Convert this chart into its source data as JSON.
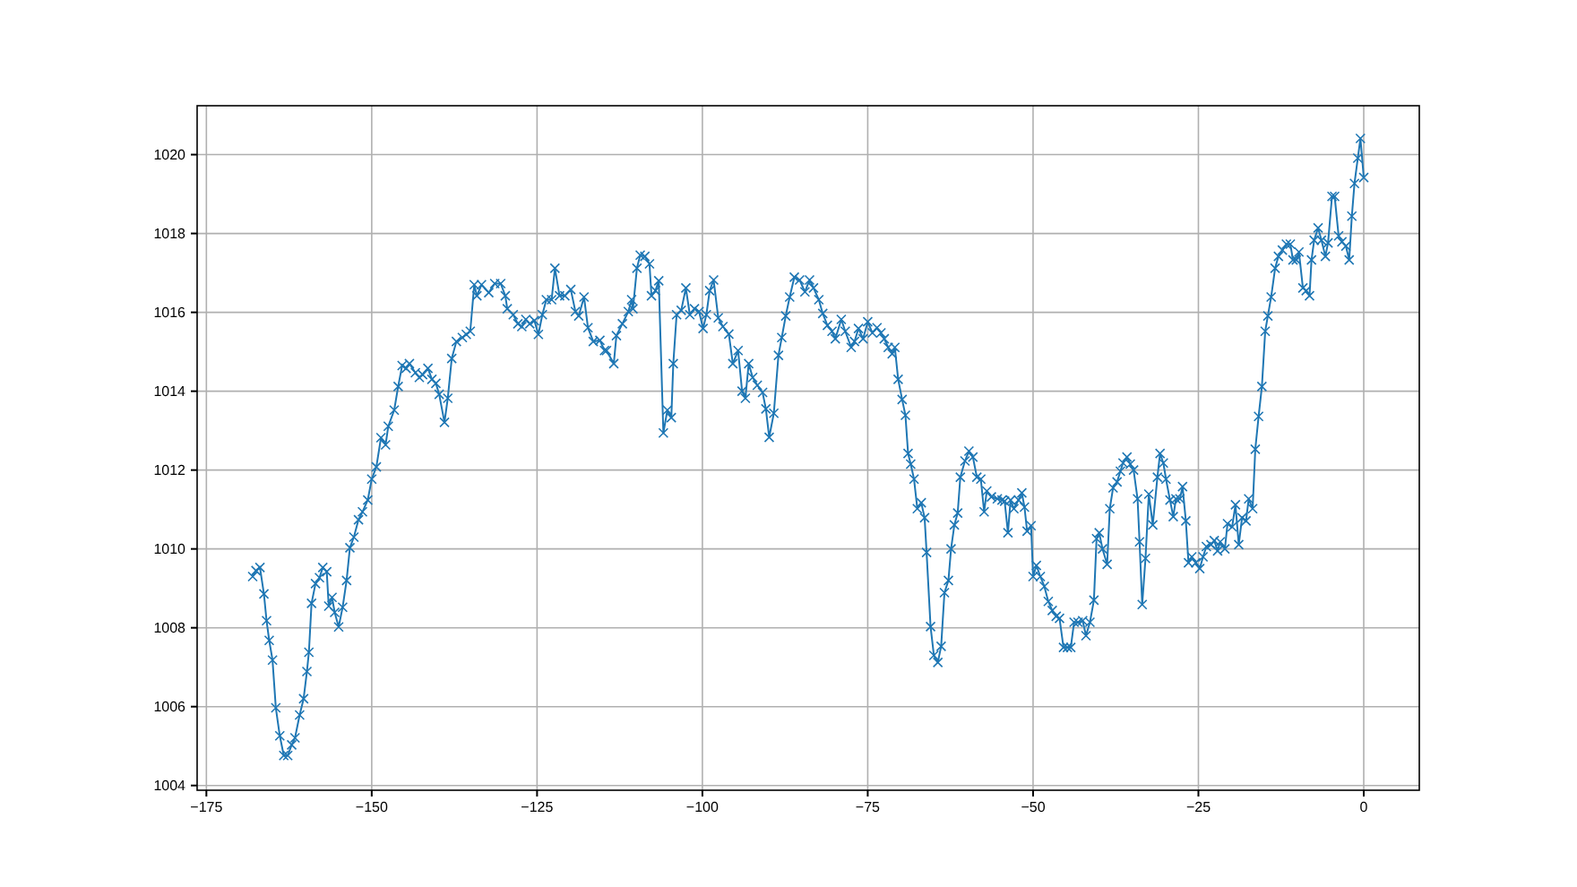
{
  "chart_data": {
    "type": "line",
    "marker": "cross",
    "line_style": "solid",
    "grid": true,
    "xlim": [
      -176.4,
      8.4
    ],
    "ylim": [
      1003.88,
      1021.24
    ],
    "xticks": [
      {
        "value": -175,
        "label": "−175"
      },
      {
        "value": -150,
        "label": "−150"
      },
      {
        "value": -125,
        "label": "−125"
      },
      {
        "value": -100,
        "label": "−100"
      },
      {
        "value": -75,
        "label": "−75"
      },
      {
        "value": -50,
        "label": "−50"
      },
      {
        "value": -25,
        "label": "−25"
      },
      0
    ],
    "yticks": [
      1004,
      1006,
      1008,
      1010,
      1012,
      1014,
      1016,
      1018,
      1020
    ],
    "series": [
      {
        "color": "#1f77b4",
        "x": [
          -168.0,
          -167.5,
          -166.9,
          -166.3,
          -165.9,
          -165.5,
          -165.0,
          -164.5,
          -163.9,
          -163.3,
          -162.7,
          -162.1,
          -161.6,
          -160.9,
          -160.3,
          -159.8,
          -159.5,
          -159.1,
          -158.5,
          -157.9,
          -157.4,
          -156.8,
          -156.5,
          -156.0,
          -155.6,
          -155.0,
          -154.4,
          -153.8,
          -153.3,
          -152.7,
          -152.0,
          -151.4,
          -150.6,
          -150.0,
          -149.3,
          -148.6,
          -147.9,
          -147.5,
          -146.6,
          -146.0,
          -145.4,
          -144.8,
          -144.3,
          -143.4,
          -142.8,
          -142.3,
          -141.5,
          -140.9,
          -140.3,
          -139.8,
          -139.0,
          -138.5,
          -137.9,
          -137.2,
          -136.3,
          -135.7,
          -135.1,
          -134.5,
          -134.1,
          -133.4,
          -132.3,
          -131.4,
          -130.5,
          -129.8,
          -129.5,
          -128.6,
          -127.9,
          -127.3,
          -126.7,
          -126.1,
          -125.4,
          -124.8,
          -124.2,
          -123.6,
          -122.8,
          -122.3,
          -121.6,
          -120.8,
          -119.9,
          -119.2,
          -118.7,
          -117.9,
          -117.3,
          -116.5,
          -115.5,
          -114.8,
          -114.5,
          -113.4,
          -113.0,
          -112.1,
          -111.2,
          -110.7,
          -110.5,
          -109.9,
          -109.4,
          -108.7,
          -108.0,
          -107.7,
          -107.1,
          -106.6,
          -105.9,
          -105.3,
          -104.7,
          -104.4,
          -103.9,
          -103.2,
          -102.5,
          -101.9,
          -101.2,
          -100.5,
          -99.9,
          -99.4,
          -98.9,
          -98.3,
          -97.6,
          -96.9,
          -96.0,
          -95.4,
          -94.6,
          -94.0,
          -93.5,
          -93.0,
          -92.4,
          -91.7,
          -90.9,
          -90.4,
          -89.9,
          -89.2,
          -88.5,
          -88.0,
          -87.4,
          -86.8,
          -86.1,
          -85.3,
          -84.5,
          -83.8,
          -83.2,
          -82.4,
          -81.8,
          -81.1,
          -80.4,
          -79.9,
          -79.0,
          -78.4,
          -77.5,
          -77.0,
          -76.4,
          -75.7,
          -75.0,
          -74.3,
          -73.6,
          -73.0,
          -72.5,
          -71.9,
          -71.3,
          -70.9,
          -70.4,
          -69.8,
          -69.3,
          -68.9,
          -68.5,
          -68.0,
          -67.5,
          -66.9,
          -66.4,
          -66.1,
          -65.5,
          -65.0,
          -64.4,
          -63.9,
          -63.4,
          -62.8,
          -62.4,
          -61.9,
          -61.4,
          -61.0,
          -60.3,
          -59.7,
          -59.1,
          -58.5,
          -57.9,
          -57.4,
          -57.0,
          -56.3,
          -55.4,
          -54.7,
          -54.3,
          -53.8,
          -53.4,
          -52.9,
          -52.2,
          -51.7,
          -51.3,
          -50.9,
          -50.3,
          -50.0,
          -49.5,
          -48.9,
          -48.3,
          -47.7,
          -47.1,
          -46.5,
          -46.0,
          -45.4,
          -44.8,
          -44.3,
          -43.8,
          -43.2,
          -42.5,
          -42.0,
          -41.4,
          -40.8,
          -40.4,
          -40.0,
          -39.5,
          -38.8,
          -38.4,
          -37.9,
          -37.3,
          -36.8,
          -36.4,
          -35.8,
          -35.3,
          -34.8,
          -34.2,
          -33.9,
          -33.5,
          -33.0,
          -32.5,
          -31.9,
          -31.2,
          -30.8,
          -30.3,
          -29.9,
          -29.3,
          -28.8,
          -28.4,
          -27.8,
          -27.4,
          -26.9,
          -26.5,
          -26.0,
          -25.4,
          -24.8,
          -24.3,
          -23.8,
          -23.1,
          -22.6,
          -22.1,
          -21.7,
          -21.0,
          -20.6,
          -19.9,
          -19.4,
          -18.9,
          -18.4,
          -17.8,
          -17.4,
          -16.8,
          -16.4,
          -15.9,
          -15.4,
          -14.9,
          -14.5,
          -14.0,
          -13.4,
          -12.9,
          -12.3,
          -11.7,
          -11.1,
          -10.7,
          -10.2,
          -9.8,
          -9.2,
          -8.7,
          -8.2,
          -7.9,
          -7.5,
          -6.9,
          -6.4,
          -5.8,
          -5.4,
          -4.8,
          -4.4,
          -3.8,
          -3.3,
          -2.7,
          -2.2,
          -1.8,
          -1.4,
          -0.9,
          -0.5,
          0
        ],
        "values": [
          1009.3,
          1009.45,
          1009.53,
          1008.86,
          1008.18,
          1007.68,
          1007.18,
          1005.97,
          1005.26,
          1004.76,
          1004.76,
          1005.03,
          1005.21,
          1005.79,
          1006.2,
          1006.89,
          1007.38,
          1008.62,
          1009.12,
          1009.27,
          1009.53,
          1009.42,
          1008.55,
          1008.77,
          1008.39,
          1008.02,
          1008.52,
          1009.2,
          1010.03,
          1010.3,
          1010.74,
          1010.94,
          1011.24,
          1011.77,
          1012.08,
          1012.82,
          1012.64,
          1013.11,
          1013.52,
          1014.12,
          1014.65,
          1014.58,
          1014.7,
          1014.47,
          1014.35,
          1014.42,
          1014.58,
          1014.3,
          1014.2,
          1013.92,
          1013.21,
          1013.82,
          1014.83,
          1015.26,
          1015.36,
          1015.44,
          1015.52,
          1016.7,
          1016.42,
          1016.7,
          1016.5,
          1016.73,
          1016.73,
          1016.42,
          1016.09,
          1015.94,
          1015.71,
          1015.64,
          1015.82,
          1015.71,
          1015.79,
          1015.44,
          1015.94,
          1016.32,
          1016.32,
          1017.12,
          1016.42,
          1016.42,
          1016.58,
          1016.02,
          1015.91,
          1016.39,
          1015.61,
          1015.26,
          1015.29,
          1015.03,
          1015.03,
          1014.7,
          1015.41,
          1015.71,
          1016.02,
          1016.32,
          1016.09,
          1017.12,
          1017.45,
          1017.42,
          1017.23,
          1016.42,
          1016.55,
          1016.8,
          1012.94,
          1013.52,
          1013.33,
          1014.7,
          1015.94,
          1016.05,
          1016.62,
          1015.94,
          1016.09,
          1016.02,
          1015.59,
          1015.94,
          1016.55,
          1016.82,
          1015.86,
          1015.64,
          1015.45,
          1014.7,
          1015.03,
          1014.0,
          1013.82,
          1014.7,
          1014.35,
          1014.15,
          1013.97,
          1013.55,
          1012.83,
          1013.44,
          1014.91,
          1015.36,
          1015.91,
          1016.39,
          1016.89,
          1016.82,
          1016.52,
          1016.82,
          1016.62,
          1016.32,
          1015.97,
          1015.67,
          1015.52,
          1015.33,
          1015.82,
          1015.52,
          1015.11,
          1015.26,
          1015.59,
          1015.33,
          1015.76,
          1015.48,
          1015.61,
          1015.48,
          1015.33,
          1015.11,
          1014.95,
          1015.11,
          1014.3,
          1013.79,
          1013.39,
          1012.42,
          1012.15,
          1011.77,
          1011.02,
          1011.17,
          1010.79,
          1009.91,
          1008.03,
          1007.3,
          1007.12,
          1007.53,
          1008.89,
          1009.2,
          1010.0,
          1010.61,
          1010.91,
          1011.82,
          1012.23,
          1012.48,
          1012.33,
          1011.82,
          1011.77,
          1010.94,
          1011.47,
          1011.32,
          1011.27,
          1011.24,
          1011.21,
          1010.41,
          1011.24,
          1011.02,
          1011.24,
          1011.42,
          1011.06,
          1010.45,
          1010.59,
          1009.3,
          1009.58,
          1009.3,
          1009.05,
          1008.67,
          1008.44,
          1008.29,
          1008.24,
          1007.5,
          1007.5,
          1007.5,
          1008.14,
          1008.14,
          1008.18,
          1007.8,
          1008.14,
          1008.7,
          1010.26,
          1010.41,
          1010.0,
          1009.61,
          1011.02,
          1011.55,
          1011.7,
          1011.97,
          1012.18,
          1012.33,
          1012.15,
          1012.0,
          1011.27,
          1010.18,
          1008.59,
          1009.76,
          1011.39,
          1010.61,
          1011.82,
          1012.42,
          1012.18,
          1011.77,
          1011.24,
          1010.82,
          1011.27,
          1011.27,
          1011.58,
          1010.71,
          1009.65,
          1009.8,
          1009.65,
          1009.5,
          1009.8,
          1010.06,
          1010.11,
          1010.21,
          1009.95,
          1010.18,
          1010.0,
          1010.64,
          1010.56,
          1011.12,
          1010.11,
          1010.79,
          1010.71,
          1011.27,
          1011.02,
          1012.53,
          1013.36,
          1014.12,
          1015.52,
          1015.91,
          1016.39,
          1017.12,
          1017.42,
          1017.58,
          1017.73,
          1017.73,
          1017.33,
          1017.33,
          1017.53,
          1016.62,
          1016.55,
          1016.42,
          1017.33,
          1017.83,
          1018.14,
          1017.83,
          1017.42,
          1017.76,
          1018.94,
          1018.94,
          1017.94,
          1017.79,
          1017.68,
          1017.33,
          1018.44,
          1019.27,
          1019.91,
          1020.41,
          1019.42
        ]
      }
    ]
  }
}
